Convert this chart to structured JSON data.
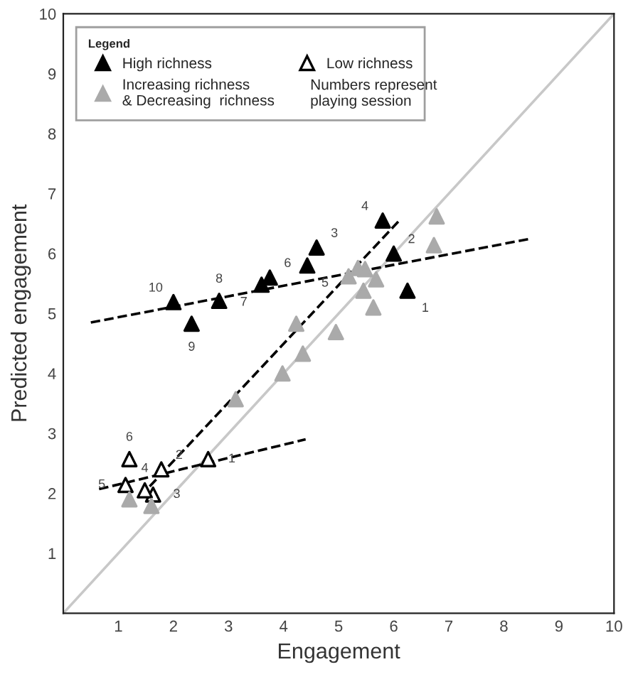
{
  "chart_data": {
    "type": "scatter",
    "xlabel": "Engagement",
    "ylabel": "Predicted engagement",
    "xlim": [
      0,
      10
    ],
    "ylim": [
      0,
      10
    ],
    "xticks": [
      1,
      2,
      3,
      4,
      5,
      6,
      7,
      8,
      9,
      10
    ],
    "yticks": [
      1,
      2,
      3,
      4,
      5,
      6,
      7,
      8,
      9,
      10
    ],
    "grid": false,
    "legend": "top left",
    "legend_title": "Legend",
    "series": [
      {
        "name": "High richness",
        "color": "#000000",
        "marker": "triangle",
        "x": [
          6.25,
          6.0,
          4.6,
          5.8,
          4.43,
          3.75,
          3.6,
          2.83,
          2.33,
          2.0
        ],
        "values": [
          5.38,
          6.0,
          6.1,
          6.55,
          5.8,
          5.6,
          5.48,
          5.21,
          4.83,
          5.19
        ]
      },
      {
        "name": "Low richness",
        "color": "#ffffff",
        "marker": "triangle",
        "x": [
          2.63,
          1.78,
          1.63,
          1.48,
          1.13,
          1.2
        ],
        "values": [
          2.57,
          2.4,
          1.98,
          2.05,
          2.14,
          2.57
        ]
      },
      {
        "name": "Increasing richness\n& Decreasing  richness",
        "color": "#aaaaaa",
        "marker": "triangle",
        "x": [
          1.2,
          1.6,
          3.13,
          3.98,
          4.35,
          4.23,
          4.95,
          5.63,
          5.45,
          5.18,
          5.35,
          5.48,
          5.68,
          6.73,
          6.78
        ],
        "values": [
          1.9,
          1.79,
          3.57,
          4.0,
          4.33,
          4.83,
          4.69,
          5.1,
          5.38,
          5.62,
          5.76,
          5.74,
          5.57,
          6.14,
          6.62
        ]
      },
      {
        "type": "line",
        "color": "#c8c8c8",
        "line_style": "solid",
        "x": [
          0,
          10
        ],
        "values": [
          0,
          10
        ]
      },
      {
        "type": "line",
        "color": "#000000",
        "line_style": "dashed",
        "x": [
          0.5,
          8.5
        ],
        "values": [
          4.85,
          6.25
        ]
      },
      {
        "type": "line",
        "color": "#000000",
        "line_style": "dashed",
        "x": [
          1.4,
          6.1
        ],
        "values": [
          1.95,
          6.55
        ]
      },
      {
        "type": "line",
        "color": "#000000",
        "line_style": "dashed",
        "x": [
          0.65,
          4.4
        ],
        "values": [
          2.07,
          2.9
        ]
      }
    ],
    "annotations": [
      "Numbers represent\nplaying session",
      {
        "text": "10",
        "x": 2.0,
        "y": 5.19
      },
      {
        "text": "9",
        "x": 2.33,
        "y": 4.83
      },
      {
        "text": "8",
        "x": 2.83,
        "y": 5.21
      },
      {
        "text": "7",
        "x": 3.6,
        "y": 5.48
      },
      {
        "text": "6",
        "x": 3.75,
        "y": 5.6
      },
      {
        "text": "5",
        "x": 4.43,
        "y": 5.8
      },
      {
        "text": "3",
        "x": 4.6,
        "y": 6.1
      },
      {
        "text": "2",
        "x": 6.0,
        "y": 6.0
      },
      {
        "text": "4",
        "x": 5.8,
        "y": 6.55
      },
      {
        "text": "1",
        "x": 6.25,
        "y": 5.38
      },
      {
        "text": "6",
        "x": 1.2,
        "y": 2.57
      },
      {
        "text": "2",
        "x": 1.78,
        "y": 2.4
      },
      {
        "text": "1",
        "x": 2.63,
        "y": 2.57
      },
      {
        "text": "5",
        "x": 1.13,
        "y": 2.14
      },
      {
        "text": "4",
        "x": 1.48,
        "y": 2.05
      },
      {
        "text": "3",
        "x": 1.63,
        "y": 1.98
      }
    ]
  }
}
